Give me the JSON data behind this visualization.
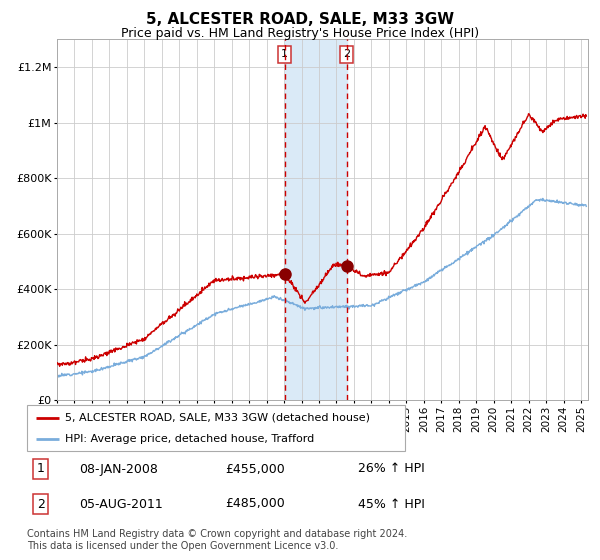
{
  "title": "5, ALCESTER ROAD, SALE, M33 3GW",
  "subtitle": "Price paid vs. HM Land Registry's House Price Index (HPI)",
  "title_fontsize": 11,
  "subtitle_fontsize": 9,
  "background_color": "#ffffff",
  "plot_bg_color": "#ffffff",
  "grid_color": "#cccccc",
  "xlim": [
    1995.0,
    2025.4
  ],
  "ylim": [
    0,
    1300000
  ],
  "yticks": [
    0,
    200000,
    400000,
    600000,
    800000,
    1000000,
    1200000
  ],
  "ytick_labels": [
    "£0",
    "£200K",
    "£400K",
    "£600K",
    "£800K",
    "£1M",
    "£1.2M"
  ],
  "xtick_years": [
    1995,
    1996,
    1997,
    1998,
    1999,
    2000,
    2001,
    2002,
    2003,
    2004,
    2005,
    2006,
    2007,
    2008,
    2009,
    2010,
    2011,
    2012,
    2013,
    2014,
    2015,
    2016,
    2017,
    2018,
    2019,
    2020,
    2021,
    2022,
    2023,
    2024,
    2025
  ],
  "red_line_color": "#cc0000",
  "blue_line_color": "#7aaddc",
  "marker_color": "#880000",
  "sale1_x": 2008.04,
  "sale1_y": 455000,
  "sale2_x": 2011.58,
  "sale2_y": 485000,
  "vline1_x": 2008.04,
  "vline2_x": 2011.58,
  "shade_x1": 2008.04,
  "shade_x2": 2011.58,
  "shade_color": "#daeaf7",
  "dashed_color": "#cc0000",
  "label_box_color": "#ffffff",
  "label_box_edge": "#cc3333",
  "legend_entries": [
    "5, ALCESTER ROAD, SALE, M33 3GW (detached house)",
    "HPI: Average price, detached house, Trafford"
  ],
  "footnote": "Contains HM Land Registry data © Crown copyright and database right 2024.\nThis data is licensed under the Open Government Licence v3.0.",
  "table_rows": [
    {
      "num": "1",
      "date": "08-JAN-2008",
      "price": "£455,000",
      "hpi": "26% ↑ HPI"
    },
    {
      "num": "2",
      "date": "05-AUG-2011",
      "price": "£485,000",
      "hpi": "45% ↑ HPI"
    }
  ]
}
